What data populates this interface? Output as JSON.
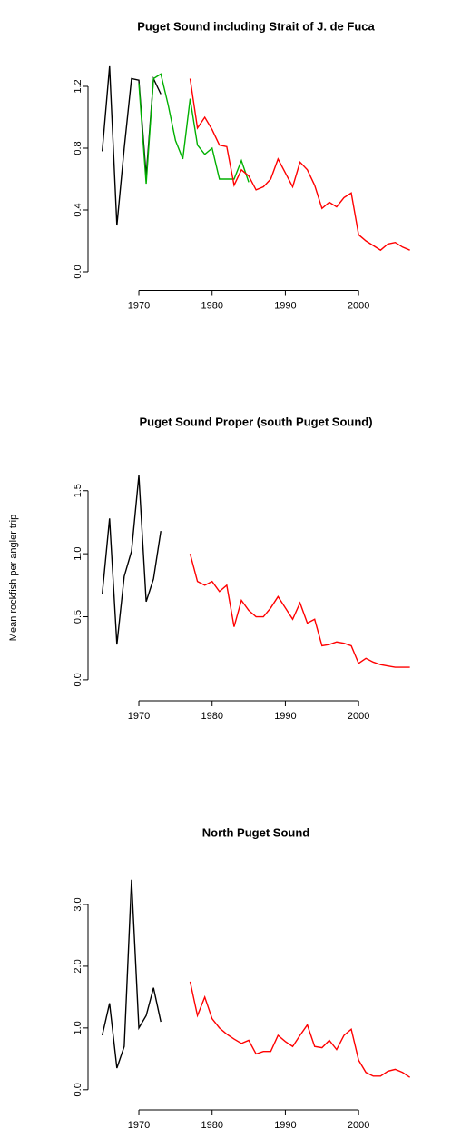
{
  "chart_data": [
    {
      "type": "line",
      "title": "Puget Sound including Strait of J. de Fuca",
      "xlim": [
        1964,
        2008
      ],
      "ylim": [
        -0.05,
        1.4
      ],
      "xticks": [
        1970,
        1980,
        1990,
        2000
      ],
      "yticks": [
        {
          "value": 0,
          "label": "0.0"
        },
        0.4,
        0.8,
        1.2
      ],
      "series": [
        {
          "color": "#000000",
          "x": [
            1965,
            1966,
            1967,
            1968,
            1969,
            1970,
            1971,
            1972,
            1973
          ],
          "values": [
            0.78,
            1.33,
            0.3,
            0.8,
            1.25,
            1.24,
            0.62,
            1.25,
            1.15
          ]
        },
        {
          "color": "#00b000",
          "x": [
            1970,
            1971,
            1972,
            1973,
            1974,
            1975,
            1976,
            1977,
            1978,
            1979,
            1980,
            1981,
            1982,
            1983,
            1984,
            1985
          ],
          "values": [
            1.22,
            0.57,
            1.25,
            1.28,
            1.08,
            0.85,
            0.73,
            1.12,
            0.82,
            0.76,
            0.8,
            0.6,
            0.6,
            0.6,
            0.72,
            0.58
          ]
        },
        {
          "color": "#ff0000",
          "x": [
            1977,
            1978,
            1979,
            1980,
            1981,
            1982,
            1983,
            1984,
            1985,
            1986,
            1987,
            1988,
            1989,
            1990,
            1991,
            1992,
            1993,
            1994,
            1995,
            1996,
            1997,
            1998,
            1999,
            2000,
            2001,
            2002,
            2003,
            2004,
            2005,
            2006,
            2007
          ],
          "values": [
            1.25,
            0.93,
            1.0,
            0.92,
            0.82,
            0.81,
            0.56,
            0.66,
            0.62,
            0.53,
            0.55,
            0.6,
            0.73,
            0.64,
            0.55,
            0.71,
            0.66,
            0.56,
            0.41,
            0.45,
            0.42,
            0.48,
            0.51,
            0.24,
            0.2,
            0.17,
            0.14,
            0.18,
            0.19,
            0.16,
            0.14
          ]
        }
      ]
    },
    {
      "type": "line",
      "title": "Puget Sound Proper (south Puget Sound)",
      "ylabel": "Mean rockfish per angler trip",
      "xlim": [
        1964,
        2008
      ],
      "ylim": [
        -0.08,
        1.7
      ],
      "xticks": [
        1970,
        1980,
        1990,
        2000
      ],
      "yticks": [
        {
          "value": 0,
          "label": "0.0"
        },
        0.5,
        {
          "value": 1,
          "label": "1.0"
        },
        1.5
      ],
      "series": [
        {
          "color": "#000000",
          "x": [
            1965,
            1966,
            1967,
            1968,
            1969,
            1970,
            1971,
            1972,
            1973
          ],
          "values": [
            0.68,
            1.28,
            0.28,
            0.82,
            1.02,
            1.62,
            0.62,
            0.8,
            1.18
          ]
        },
        {
          "color": "#ff0000",
          "x": [
            1977,
            1978,
            1979,
            1980,
            1981,
            1982,
            1983,
            1984,
            1985,
            1986,
            1987,
            1988,
            1989,
            1990,
            1991,
            1992,
            1993,
            1994,
            1995,
            1996,
            1997,
            1998,
            1999,
            2000,
            2001,
            2002,
            2003,
            2004,
            2005,
            2006,
            2007
          ],
          "values": [
            1.0,
            0.78,
            0.75,
            0.78,
            0.7,
            0.75,
            0.42,
            0.63,
            0.55,
            0.5,
            0.5,
            0.57,
            0.66,
            0.57,
            0.48,
            0.61,
            0.45,
            0.48,
            0.27,
            0.28,
            0.3,
            0.29,
            0.27,
            0.13,
            0.17,
            0.14,
            0.12,
            0.11,
            0.1,
            0.1,
            0.1
          ]
        }
      ]
    },
    {
      "type": "line",
      "title": "North Puget Sound",
      "xlim": [
        1964,
        2008
      ],
      "ylim": [
        -0.15,
        3.5
      ],
      "xticks": [
        1970,
        1980,
        1990,
        2000
      ],
      "yticks": [
        {
          "value": 0,
          "label": "0.0"
        },
        {
          "value": 1,
          "label": "1.0"
        },
        {
          "value": 2,
          "label": "2.0"
        },
        {
          "value": 3,
          "label": "3.0"
        }
      ],
      "series": [
        {
          "color": "#000000",
          "x": [
            1965,
            1966,
            1967,
            1968,
            1969,
            1970,
            1971,
            1972,
            1973
          ],
          "values": [
            0.88,
            1.4,
            0.35,
            0.7,
            3.4,
            1.0,
            1.2,
            1.65,
            1.1
          ]
        },
        {
          "color": "#ff0000",
          "x": [
            1977,
            1978,
            1979,
            1980,
            1981,
            1982,
            1983,
            1984,
            1985,
            1986,
            1987,
            1988,
            1989,
            1990,
            1991,
            1992,
            1993,
            1994,
            1995,
            1996,
            1997,
            1998,
            1999,
            2000,
            2001,
            2002,
            2003,
            2004,
            2005,
            2006,
            2007
          ],
          "values": [
            1.75,
            1.2,
            1.5,
            1.15,
            1.0,
            0.9,
            0.82,
            0.75,
            0.8,
            0.58,
            0.62,
            0.62,
            0.88,
            0.78,
            0.7,
            0.88,
            1.05,
            0.7,
            0.68,
            0.8,
            0.65,
            0.88,
            0.98,
            0.48,
            0.28,
            0.22,
            0.22,
            0.3,
            0.33,
            0.28,
            0.2
          ]
        }
      ]
    }
  ]
}
